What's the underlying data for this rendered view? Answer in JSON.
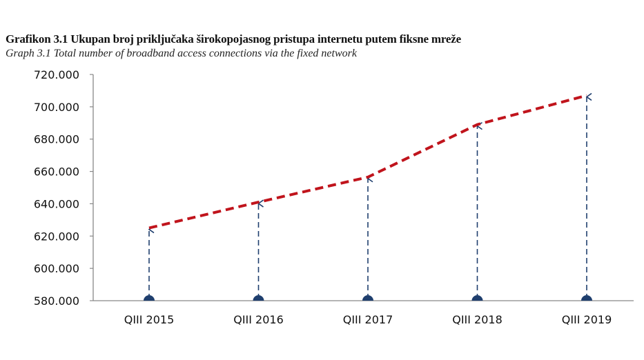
{
  "title": "Grafikon 3.1 Ukupan broj priključaka širokopojasnog pristupa internetu putem fiksne mreže",
  "subtitle": "Graph 3.1 Total number of broadband access connections via the fixed network",
  "chart_data": {
    "type": "line",
    "title": "Grafikon 3.1 Ukupan broj priključaka širokopojasnog pristupa internetu putem fiksne mreže",
    "subtitle": "Graph 3.1 Total number of broadband access connections via the fixed network",
    "categories": [
      "QIII 2015",
      "QIII 2016",
      "QIII 2017",
      "QIII 2018",
      "QIII 2019"
    ],
    "values": [
      625000,
      641000,
      656500,
      689000,
      707000
    ],
    "ylim": [
      580000,
      720000
    ],
    "yticks": [
      580000,
      600000,
      620000,
      640000,
      660000,
      680000,
      700000,
      720000
    ],
    "ytick_labels": [
      "580.000",
      "600.000",
      "620.000",
      "640.000",
      "660.000",
      "680.000",
      "700.000",
      "720.000"
    ],
    "xlabel": "",
    "ylabel": "",
    "grid": false,
    "legend": "none",
    "colors": {
      "line": "#c0141c",
      "arrow": "#1f3f6e",
      "axis": "#888888"
    }
  }
}
